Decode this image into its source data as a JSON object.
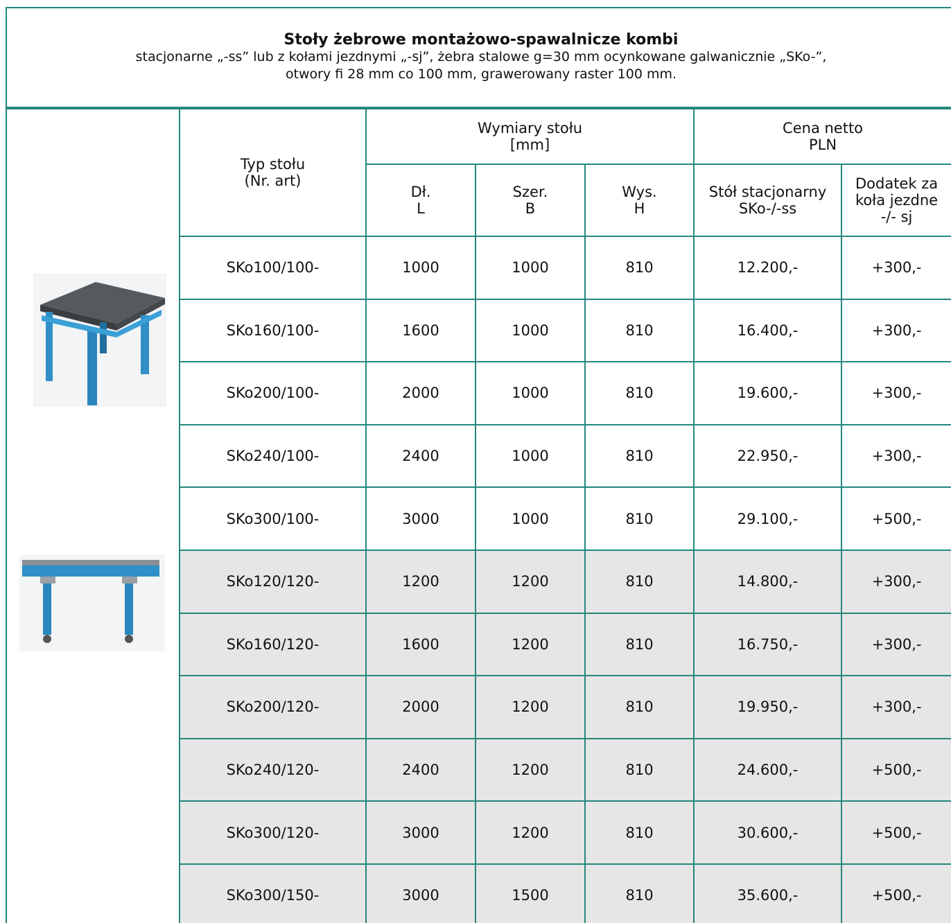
{
  "header": {
    "title": "Stoły żebrowe montażowo-spawalnicze kombi",
    "subtitle": [
      "stacjonarne „-ss” lub z kołami jezdnymi „-sj”, żebra stalowe g=30 mm ocynkowane galwanicznie „SKo-”,",
      "otwory fi 28 mm co 100 mm, grawerowany raster 100 mm."
    ]
  },
  "table": {
    "columns": {
      "type": "Typ stołu\n(Nr. art)",
      "dimensions": "Wymiary stołu\n[mm]",
      "price": "Cena netto\nPLN",
      "length": "Dł.\nL",
      "width": "Szer.\nB",
      "height": "Wys.\nH",
      "stationary": "Stół stacjonarny\nSKo-/-ss",
      "wheels": "Dodatek za\nkoła jezdne\n-/- sj"
    },
    "rows": [
      [
        "SKo100/100-",
        "1000",
        "1000",
        "810",
        "12.200,-",
        "+300,-"
      ],
      [
        "SKo160/100-",
        "1600",
        "1000",
        "810",
        "16.400,-",
        "+300,-"
      ],
      [
        "SKo200/100-",
        "2000",
        "1000",
        "810",
        "19.600,-",
        "+300,-"
      ],
      [
        "SKo240/100-",
        "2400",
        "1000",
        "810",
        "22.950,-",
        "+300,-"
      ],
      [
        "SKo300/100-",
        "3000",
        "1000",
        "810",
        "29.100,-",
        "+500,-"
      ],
      [
        "SKo120/120-",
        "1200",
        "1200",
        "810",
        "14.800,-",
        "+300,-"
      ],
      [
        "SKo160/120-",
        "1600",
        "1200",
        "810",
        "16.750,-",
        "+300,-"
      ],
      [
        "SKo200/120-",
        "2000",
        "1200",
        "810",
        "19.950,-",
        "+300,-"
      ],
      [
        "SKo240/120-",
        "2400",
        "1200",
        "810",
        "24.600,-",
        "+500,-"
      ],
      [
        "SKo300/120-",
        "3000",
        "1200",
        "810",
        "30.600,-",
        "+500,-"
      ],
      [
        "SKo300/150-",
        "3000",
        "1500",
        "810",
        "35.600,-",
        "+500,-"
      ]
    ]
  }
}
